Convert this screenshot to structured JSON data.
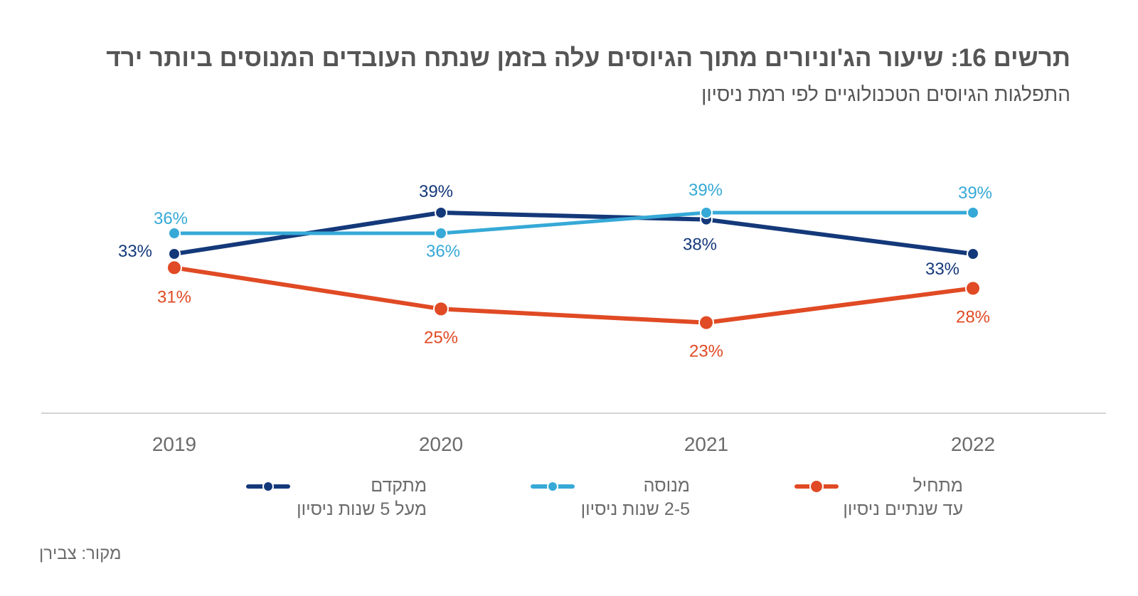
{
  "title": "תרשים 16: שיעור הג'וניורים מתוך הגיוסים עלה בזמן שנתח העובדים המנוסים ביותר ירד",
  "subtitle": "התפלגות הגיוסים הטכנולוגיים לפי רמת ניסיון",
  "source": "מקור: צבירן",
  "chart_data": {
    "type": "line",
    "categories": [
      "2019",
      "2020",
      "2021",
      "2022"
    ],
    "ylim": [
      0,
      45
    ],
    "grid": false,
    "legend_position": "bottom",
    "series": [
      {
        "name": "מתקדם",
        "description": "מעל 5 שנות ניסיון",
        "color": "#14397a",
        "values": [
          33,
          39,
          38,
          33
        ],
        "labels": [
          "33%",
          "39%",
          "38%",
          "33%"
        ]
      },
      {
        "name": "מנוסה",
        "description": "2-5 שנות ניסיון",
        "color": "#36a9d7",
        "values": [
          36,
          36,
          39,
          39
        ],
        "labels": [
          "36%",
          "36%",
          "39%",
          "39%"
        ]
      },
      {
        "name": "מתחיל",
        "description": "עד שנתיים ניסיון",
        "color": "#e04a24",
        "values": [
          31,
          25,
          23,
          28
        ],
        "labels": [
          "31%",
          "25%",
          "23%",
          "28%"
        ]
      }
    ]
  }
}
